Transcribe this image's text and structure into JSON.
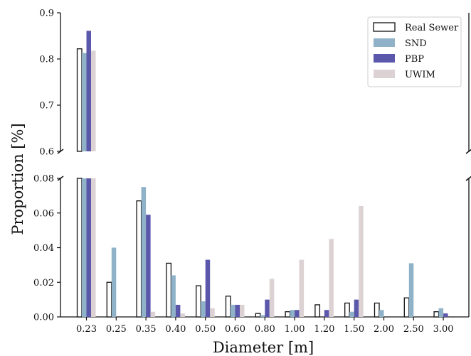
{
  "chart_data": {
    "type": "bar",
    "xlabel": "Diameter [m]",
    "ylabel": "Proportion [%]",
    "broken_y_axis": true,
    "upper_ylim": [
      0.6,
      0.9
    ],
    "upper_yticks": [
      "0.6",
      "0.7",
      "0.8",
      "0.9"
    ],
    "lower_ylim": [
      0.0,
      0.08
    ],
    "lower_yticks": [
      "0.00",
      "0.02",
      "0.04",
      "0.06",
      "0.08"
    ],
    "categories": [
      "0.23",
      "0.25",
      "0.35",
      "0.40",
      "0.50",
      "0.60",
      "0.80",
      "1.00",
      "1.20",
      "1.50",
      "2.00",
      "2.50",
      "3.00"
    ],
    "series": [
      {
        "name": "Real Sewer",
        "color": "#ffffff",
        "stroke": "#111111",
        "values": [
          0.822,
          0.02,
          0.067,
          0.031,
          0.018,
          0.012,
          0.002,
          0.003,
          0.007,
          0.008,
          0.008,
          0.011,
          0.003
        ]
      },
      {
        "name": "SND",
        "color": "#8fb2c9",
        "stroke": "none",
        "values": [
          0.813,
          0.04,
          0.075,
          0.024,
          0.009,
          0.007,
          0.001,
          0.004,
          0.0,
          0.003,
          0.004,
          0.031,
          0.005
        ]
      },
      {
        "name": "PBP",
        "color": "#5b57aa",
        "stroke": "none",
        "values": [
          0.861,
          0.0,
          0.059,
          0.007,
          0.033,
          0.007,
          0.01,
          0.004,
          0.004,
          0.01,
          0.0,
          0.0,
          0.002
        ]
      },
      {
        "name": "UWIM",
        "color": "#dcd2d4",
        "stroke": "none",
        "values": [
          0.818,
          0.0,
          0.003,
          0.002,
          0.005,
          0.007,
          0.022,
          0.033,
          0.045,
          0.064,
          0.0,
          0.0,
          0.0
        ]
      }
    ],
    "legend_position": "upper-right",
    "grid": false
  }
}
